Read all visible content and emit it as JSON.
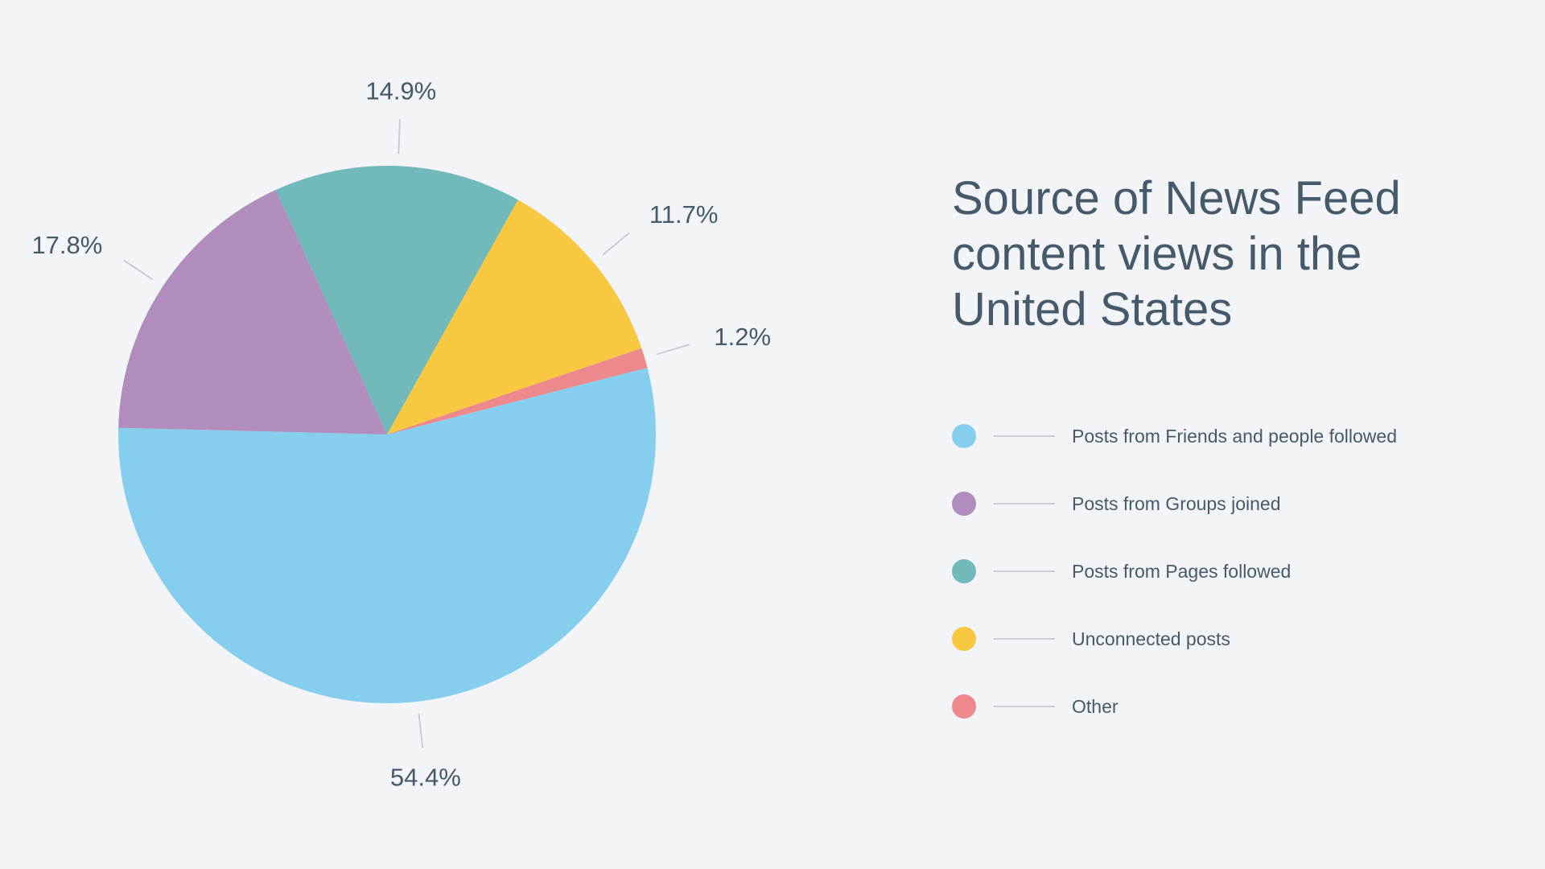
{
  "chart_data": {
    "type": "pie",
    "title": "Source of News Feed content views in the United States",
    "series": [
      {
        "values": [
          54.4,
          17.8,
          14.9,
          11.7,
          1.2
        ]
      }
    ],
    "categories": [
      "Posts from Friends and people followed",
      "Posts from Groups joined",
      "Posts from Pages followed",
      "Unconnected posts",
      "Other"
    ],
    "data_labels": [
      "54.4%",
      "17.8%",
      "14.9%",
      "11.7%",
      "1.2%"
    ],
    "colors": [
      "#86ceee",
      "#b08dbd",
      "#71b9bb",
      "#f8c841",
      "#ed888c"
    ],
    "legend_position": "right"
  },
  "title": "Source of News Feed content views in the United States",
  "legend": [
    {
      "label": "Posts from Friends and people followed",
      "color": "#86ceee"
    },
    {
      "label": "Posts from Groups joined",
      "color": "#b08dbd"
    },
    {
      "label": "Posts from Pages followed",
      "color": "#71b9bb"
    },
    {
      "label": "Unconnected posts",
      "color": "#f8c841"
    },
    {
      "label": "Other",
      "color": "#ed888c"
    }
  ]
}
